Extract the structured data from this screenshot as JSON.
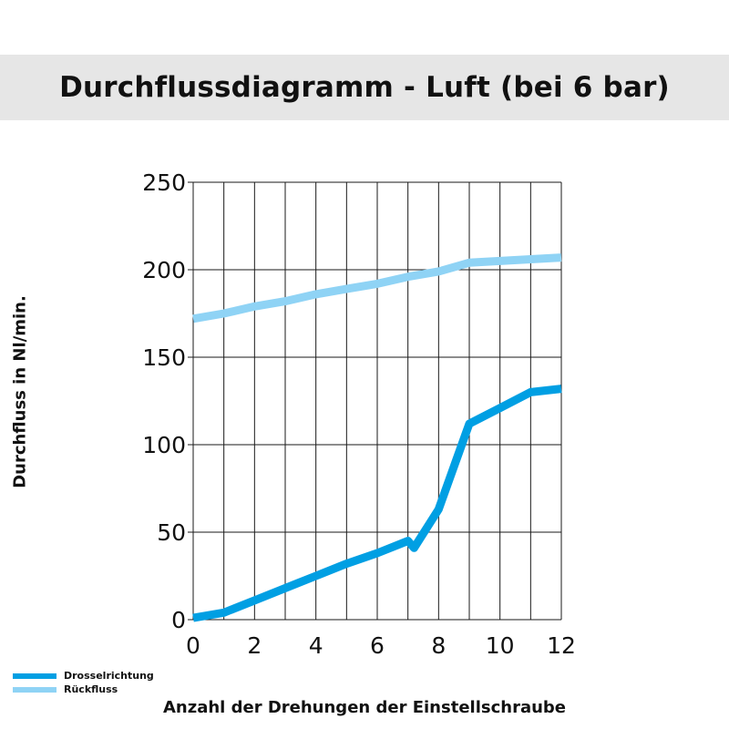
{
  "chart_data": {
    "type": "line",
    "title": "Durchflussdiagramm - Luft (bei 6 bar)",
    "xlabel": "Anzahl der Drehungen der Einstellschraube",
    "ylabel": "Durchfluss in Nl/min.",
    "xlim": [
      0,
      12
    ],
    "ylim": [
      0,
      250
    ],
    "x_ticks": [
      0,
      2,
      4,
      6,
      8,
      10,
      12
    ],
    "y_ticks": [
      0,
      50,
      100,
      150,
      200,
      250
    ],
    "grid": true,
    "legend_position": "bottom-left",
    "series": [
      {
        "name": "Drosselrichtung",
        "color": "#009fe3",
        "x": [
          0,
          1,
          2,
          3,
          4,
          5,
          6,
          7,
          7.2,
          8,
          9,
          10,
          11,
          12
        ],
        "y": [
          1,
          4,
          11,
          18,
          25,
          32,
          38,
          45,
          41,
          63,
          112,
          121,
          130,
          132
        ]
      },
      {
        "name": "Rückfluss",
        "color": "#8fd3f5",
        "x": [
          0,
          1,
          2,
          3,
          4,
          5,
          6,
          7,
          8,
          9,
          10,
          11,
          12
        ],
        "y": [
          172,
          175,
          179,
          182,
          186,
          189,
          192,
          196,
          199,
          204,
          205,
          206,
          207
        ]
      }
    ]
  }
}
